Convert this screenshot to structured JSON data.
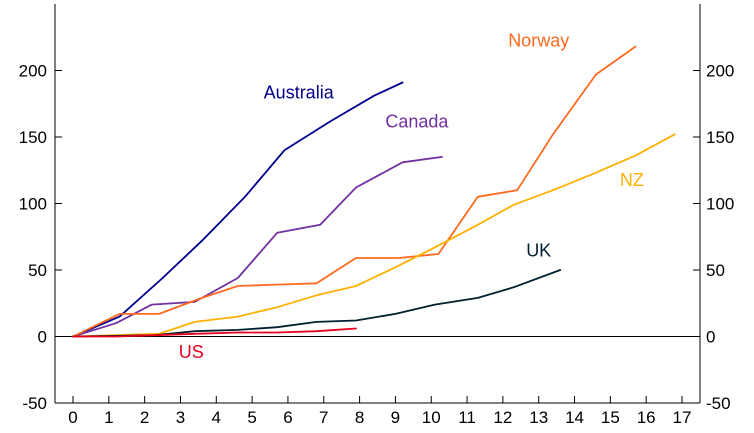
{
  "chart_data": {
    "type": "line",
    "title": "",
    "xlabel": "",
    "ylabel": "",
    "xlim": [
      0,
      17
    ],
    "ylim": [
      -50,
      250
    ],
    "x_ticks": [
      0,
      1,
      2,
      3,
      4,
      5,
      6,
      7,
      8,
      9,
      10,
      11,
      12,
      13,
      14,
      15,
      16,
      17
    ],
    "y_ticks": [
      -50,
      0,
      50,
      100,
      150,
      200
    ],
    "grid": false,
    "legend": "none",
    "series": [
      {
        "name": "Australia",
        "color": "#00008f",
        "points": [
          [
            0,
            0
          ],
          [
            1.3,
            15
          ],
          [
            2.5,
            44
          ],
          [
            3.6,
            72
          ],
          [
            4.8,
            105
          ],
          [
            5.9,
            140
          ],
          [
            7.2,
            162
          ],
          [
            8.4,
            181
          ],
          [
            9.2,
            191
          ]
        ]
      },
      {
        "name": "Canada",
        "color": "#7030a0",
        "points": [
          [
            0,
            0
          ],
          [
            1.2,
            10
          ],
          [
            2.2,
            24
          ],
          [
            3.4,
            26
          ],
          [
            4.6,
            44
          ],
          [
            5.7,
            78
          ],
          [
            6.9,
            84
          ],
          [
            7.9,
            112
          ],
          [
            9.2,
            131
          ],
          [
            10.3,
            135
          ]
        ]
      },
      {
        "name": "Norway",
        "color": "#ff6a1f",
        "points": [
          [
            0,
            0
          ],
          [
            1.3,
            17
          ],
          [
            2.4,
            17
          ],
          [
            3.6,
            29
          ],
          [
            4.6,
            38
          ],
          [
            5.7,
            39
          ],
          [
            6.8,
            40
          ],
          [
            7.9,
            59
          ],
          [
            9.1,
            59
          ],
          [
            10.2,
            62
          ],
          [
            11.3,
            105
          ],
          [
            12.4,
            110
          ],
          [
            13.4,
            152
          ],
          [
            14.6,
            197
          ],
          [
            15.7,
            218
          ]
        ]
      },
      {
        "name": "NZ",
        "color": "#ffb000",
        "points": [
          [
            0,
            0
          ],
          [
            2.4,
            2
          ],
          [
            3.4,
            11
          ],
          [
            4.6,
            15
          ],
          [
            5.7,
            22
          ],
          [
            6.8,
            31
          ],
          [
            7.9,
            38
          ],
          [
            9.0,
            52
          ],
          [
            10.1,
            67
          ],
          [
            11.3,
            84
          ],
          [
            12.3,
            99
          ],
          [
            13.4,
            110
          ],
          [
            14.5,
            122
          ],
          [
            15.7,
            136
          ],
          [
            16.8,
            152
          ]
        ]
      },
      {
        "name": "UK",
        "color": "#002030",
        "points": [
          [
            0,
            0
          ],
          [
            2.3,
            1
          ],
          [
            3.4,
            4
          ],
          [
            4.6,
            5
          ],
          [
            5.7,
            7
          ],
          [
            6.8,
            11
          ],
          [
            7.9,
            12
          ],
          [
            9.0,
            17
          ],
          [
            10.1,
            24
          ],
          [
            11.3,
            29
          ],
          [
            12.3,
            37
          ],
          [
            13.6,
            50
          ]
        ]
      },
      {
        "name": "US",
        "color": "#e8001c",
        "points": [
          [
            0,
            0
          ],
          [
            1.2,
            0
          ],
          [
            2.3,
            1
          ],
          [
            3.4,
            2
          ],
          [
            4.6,
            3
          ],
          [
            5.7,
            3
          ],
          [
            6.8,
            4
          ],
          [
            7.9,
            6
          ]
        ]
      }
    ],
    "labels": [
      {
        "series": "Australia",
        "text": "Australia",
        "x": 6.3,
        "y": 179
      },
      {
        "series": "Canada",
        "text": "Canada",
        "x": 9.6,
        "y": 157
      },
      {
        "series": "Norway",
        "text": "Norway",
        "x": 13.0,
        "y": 218
      },
      {
        "series": "NZ",
        "text": "NZ",
        "x": 15.6,
        "y": 113
      },
      {
        "series": "UK",
        "text": "UK",
        "x": 13.0,
        "y": 60
      },
      {
        "series": "US",
        "text": "US",
        "x": 3.3,
        "y": -16
      }
    ]
  }
}
